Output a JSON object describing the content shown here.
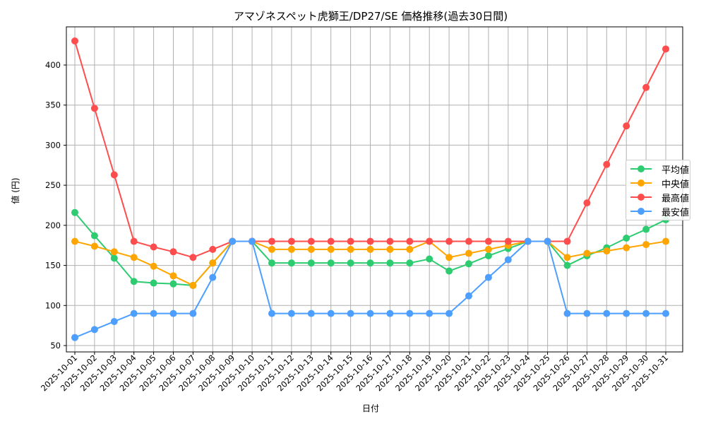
{
  "chart_data": {
    "type": "line",
    "title": "アマゾネスペット虎獅王/DP27/SE 価格推移(過去30日間)",
    "xlabel": "日付",
    "ylabel": "値 (円)",
    "ylim": [
      40,
      445
    ],
    "yticks": [
      50,
      100,
      150,
      200,
      250,
      300,
      350,
      400
    ],
    "grid": true,
    "legend_position": "center right",
    "x": [
      "2025-10-01",
      "2025-10-02",
      "2025-10-03",
      "2025-10-04",
      "2025-10-05",
      "2025-10-06",
      "2025-10-07",
      "2025-10-08",
      "2025-10-09",
      "2025-10-10",
      "2025-10-11",
      "2025-10-12",
      "2025-10-13",
      "2025-10-14",
      "2025-10-15",
      "2025-10-16",
      "2025-10-17",
      "2025-10-18",
      "2025-10-19",
      "2025-10-20",
      "2025-10-21",
      "2025-10-22",
      "2025-10-23",
      "2025-10-24",
      "2025-10-25",
      "2025-10-26",
      "2025-10-27",
      "2025-10-28",
      "2025-10-29",
      "2025-10-30",
      "2025-10-31"
    ],
    "series": [
      {
        "name": "平均値",
        "color": "#2ecc71",
        "values": [
          216,
          187,
          159,
          130,
          128,
          127,
          125,
          153,
          180,
          180,
          153,
          153,
          153,
          153,
          153,
          153,
          153,
          153,
          158,
          143,
          152,
          162,
          171,
          180,
          180,
          150,
          162,
          172,
          184,
          195,
          207
        ]
      },
      {
        "name": "中央値",
        "color": "#ffa500",
        "values": [
          180,
          174,
          167,
          160,
          149,
          137,
          125,
          153,
          180,
          180,
          170,
          170,
          170,
          170,
          170,
          170,
          170,
          170,
          180,
          160,
          165,
          170,
          175,
          180,
          180,
          160,
          165,
          168,
          172,
          176,
          180
        ]
      },
      {
        "name": "最高値",
        "color": "#ff4d4d",
        "values": [
          430,
          346,
          263,
          180,
          173,
          167,
          160,
          170,
          180,
          180,
          180,
          180,
          180,
          180,
          180,
          180,
          180,
          180,
          180,
          180,
          180,
          180,
          180,
          180,
          180,
          180,
          228,
          276,
          324,
          372,
          420
        ]
      },
      {
        "name": "最安値",
        "color": "#4d9fff",
        "values": [
          60,
          70,
          80,
          90,
          90,
          90,
          90,
          135,
          180,
          180,
          90,
          90,
          90,
          90,
          90,
          90,
          90,
          90,
          90,
          90,
          112,
          135,
          157,
          180,
          180,
          90,
          90,
          90,
          90,
          90,
          90
        ]
      }
    ]
  },
  "legend": {
    "items": [
      {
        "label": "平均値",
        "color": "#2ecc71"
      },
      {
        "label": "中央値",
        "color": "#ffa500"
      },
      {
        "label": "最高値",
        "color": "#ff4d4d"
      },
      {
        "label": "最安値",
        "color": "#4d9fff"
      }
    ]
  }
}
